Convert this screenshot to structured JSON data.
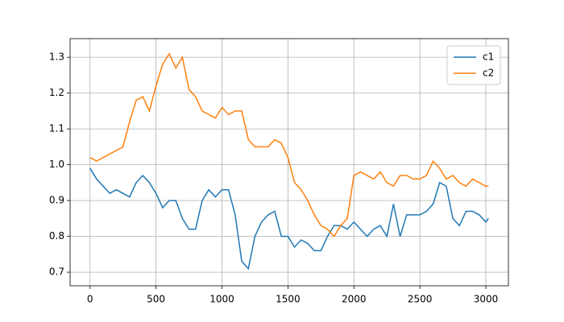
{
  "chart_data": {
    "type": "line",
    "x": [
      0,
      50,
      100,
      150,
      200,
      250,
      300,
      350,
      400,
      450,
      500,
      550,
      600,
      650,
      700,
      750,
      800,
      850,
      900,
      950,
      1000,
      1050,
      1100,
      1150,
      1200,
      1250,
      1300,
      1350,
      1400,
      1450,
      1500,
      1550,
      1600,
      1650,
      1700,
      1750,
      1800,
      1850,
      1900,
      1950,
      2000,
      2050,
      2100,
      2150,
      2200,
      2250,
      2300,
      2350,
      2400,
      2450,
      2500,
      2550,
      2600,
      2650,
      2700,
      2750,
      2800,
      2850,
      2900,
      2950,
      3000,
      3020
    ],
    "series": [
      {
        "name": "c1",
        "color": "#1f77b4",
        "values": [
          0.99,
          0.96,
          0.94,
          0.92,
          0.93,
          0.92,
          0.91,
          0.95,
          0.97,
          0.95,
          0.92,
          0.88,
          0.9,
          0.9,
          0.85,
          0.82,
          0.82,
          0.9,
          0.93,
          0.91,
          0.93,
          0.93,
          0.86,
          0.73,
          0.71,
          0.8,
          0.84,
          0.86,
          0.87,
          0.8,
          0.8,
          0.77,
          0.79,
          0.78,
          0.76,
          0.76,
          0.8,
          0.83,
          0.83,
          0.82,
          0.84,
          0.82,
          0.8,
          0.82,
          0.83,
          0.8,
          0.89,
          0.8,
          0.86,
          0.86,
          0.86,
          0.87,
          0.89,
          0.95,
          0.94,
          0.85,
          0.83,
          0.87,
          0.87,
          0.86,
          0.84,
          0.85
        ]
      },
      {
        "name": "c2",
        "color": "#ff7f0e",
        "values": [
          1.02,
          1.01,
          1.02,
          1.03,
          1.04,
          1.05,
          1.12,
          1.18,
          1.19,
          1.15,
          1.22,
          1.28,
          1.31,
          1.27,
          1.3,
          1.21,
          1.19,
          1.15,
          1.14,
          1.13,
          1.16,
          1.14,
          1.15,
          1.15,
          1.07,
          1.05,
          1.05,
          1.05,
          1.07,
          1.06,
          1.02,
          0.95,
          0.93,
          0.9,
          0.86,
          0.83,
          0.82,
          0.8,
          0.83,
          0.85,
          0.97,
          0.98,
          0.97,
          0.96,
          0.98,
          0.95,
          0.94,
          0.97,
          0.97,
          0.96,
          0.96,
          0.97,
          1.01,
          0.99,
          0.96,
          0.97,
          0.95,
          0.94,
          0.96,
          0.95,
          0.94,
          0.94
        ]
      }
    ],
    "xlim": [
      -151,
      3171
    ],
    "xticks": [
      0,
      500,
      1000,
      1500,
      2000,
      2500,
      3000
    ],
    "ylim": [
      0.662,
      1.352
    ],
    "yticks": [
      0.7,
      0.8,
      0.9,
      1.0,
      1.1,
      1.2,
      1.3
    ],
    "grid": true,
    "legend": "upper right"
  }
}
